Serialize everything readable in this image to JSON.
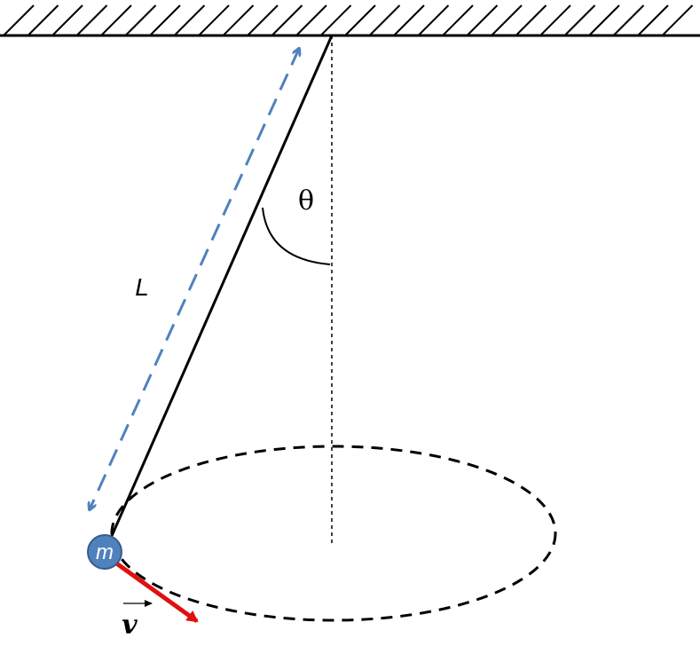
{
  "labels": {
    "angle": "θ",
    "length": "L",
    "mass": "m",
    "velocity": "v"
  },
  "colors": {
    "line": "#000000",
    "length_arrow": "#4f81bd",
    "bob_fill": "#4f81bd",
    "bob_stroke": "#385d8a",
    "velocity_arrow": "#e01010"
  }
}
